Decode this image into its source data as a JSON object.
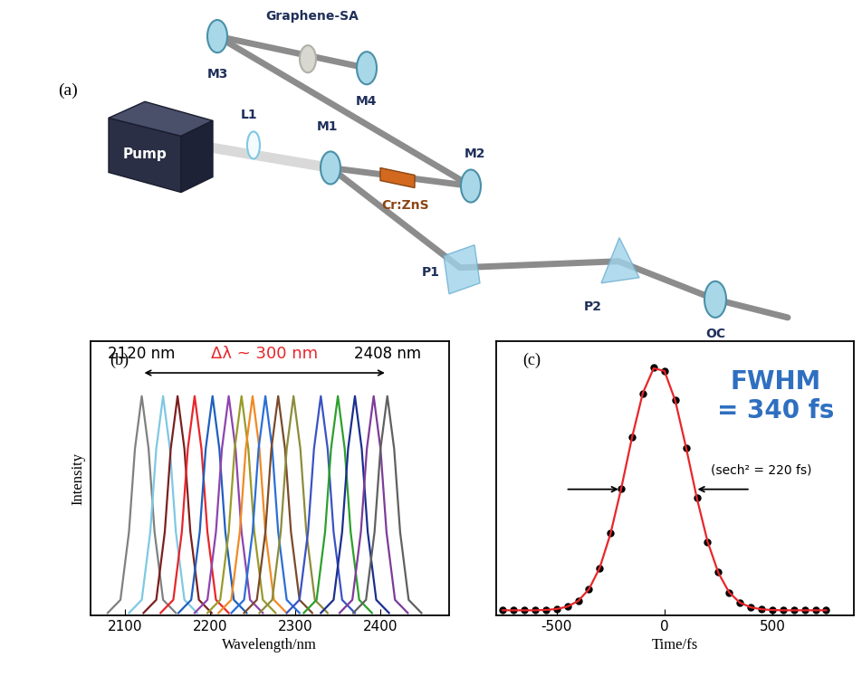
{
  "diagram": {
    "panel_label": "(a)",
    "components": {
      "pump": "Pump",
      "lens": "L1",
      "mirrors": [
        "M1",
        "M2",
        "M3",
        "M4"
      ],
      "gain_crystal": "Cr:ZnS",
      "saturable_absorber": "Graphene-SA",
      "prisms": [
        "P1",
        "P2"
      ],
      "output_coupler": "OC"
    }
  },
  "chart_data": [
    {
      "type": "line",
      "x_label": "Wavelength/nm",
      "y_label": "Intensity",
      "annotations": [
        "(b)",
        "2120 nm",
        "Δλ ~ 300 nm",
        "2408 nm"
      ],
      "xlim": [
        2060,
        2480
      ],
      "xticks": [
        2100,
        2200,
        2300,
        2400
      ],
      "ylim": [
        0,
        1.25
      ],
      "tick_labels": "x",
      "series": [
        {
          "color": "#808080",
          "x": [
            2080,
            2095,
            2105,
            2112,
            2120,
            2128,
            2135,
            2145,
            2160
          ],
          "values": [
            0.01,
            0.07,
            0.38,
            0.76,
            1.0,
            0.76,
            0.38,
            0.07,
            0.01
          ]
        },
        {
          "color": "#7ec8e3",
          "x": [
            2105,
            2120,
            2130,
            2137,
            2145,
            2153,
            2160,
            2170,
            2185
          ],
          "values": [
            0.01,
            0.07,
            0.38,
            0.76,
            1.0,
            0.76,
            0.38,
            0.07,
            0.01
          ]
        },
        {
          "color": "#7b1f1f",
          "x": [
            2122,
            2137,
            2147,
            2154,
            2162,
            2170,
            2177,
            2187,
            2202
          ],
          "values": [
            0.01,
            0.07,
            0.38,
            0.76,
            1.0,
            0.76,
            0.38,
            0.07,
            0.01
          ]
        },
        {
          "color": "#e8262a",
          "x": [
            2142,
            2157,
            2167,
            2174,
            2182,
            2190,
            2197,
            2207,
            2222
          ],
          "values": [
            0.01,
            0.07,
            0.38,
            0.76,
            1.0,
            0.76,
            0.38,
            0.07,
            0.01
          ]
        },
        {
          "color": "#1f5fbf",
          "x": [
            2163,
            2178,
            2188,
            2195,
            2203,
            2211,
            2218,
            2228,
            2243
          ],
          "values": [
            0.01,
            0.07,
            0.38,
            0.76,
            1.0,
            0.76,
            0.38,
            0.07,
            0.01
          ]
        },
        {
          "color": "#8e44ad",
          "x": [
            2182,
            2197,
            2207,
            2214,
            2222,
            2230,
            2237,
            2247,
            2262
          ],
          "values": [
            0.01,
            0.07,
            0.38,
            0.76,
            1.0,
            0.76,
            0.38,
            0.07,
            0.01
          ]
        },
        {
          "color": "#9a9a2a",
          "x": [
            2197,
            2212,
            2222,
            2229,
            2237,
            2245,
            2252,
            2262,
            2277
          ],
          "values": [
            0.01,
            0.07,
            0.38,
            0.76,
            1.0,
            0.76,
            0.38,
            0.07,
            0.01
          ]
        },
        {
          "color": "#f08a24",
          "x": [
            2210,
            2225,
            2235,
            2242,
            2250,
            2258,
            2265,
            2275,
            2290
          ],
          "values": [
            0.01,
            0.07,
            0.38,
            0.76,
            1.0,
            0.76,
            0.38,
            0.07,
            0.01
          ]
        },
        {
          "color": "#2a6fd6",
          "x": [
            2225,
            2240,
            2250,
            2257,
            2265,
            2273,
            2280,
            2290,
            2305
          ],
          "values": [
            0.01,
            0.07,
            0.38,
            0.76,
            1.0,
            0.76,
            0.38,
            0.07,
            0.01
          ]
        },
        {
          "color": "#7a4a2a",
          "x": [
            2240,
            2255,
            2265,
            2272,
            2280,
            2288,
            2295,
            2305,
            2320
          ],
          "values": [
            0.01,
            0.07,
            0.38,
            0.76,
            1.0,
            0.76,
            0.38,
            0.07,
            0.01
          ]
        },
        {
          "color": "#8c8c3a",
          "x": [
            2258,
            2273,
            2283,
            2290,
            2298,
            2306,
            2313,
            2323,
            2338
          ],
          "values": [
            0.01,
            0.07,
            0.38,
            0.76,
            1.0,
            0.76,
            0.38,
            0.07,
            0.01
          ]
        },
        {
          "color": "#3a52c4",
          "x": [
            2290,
            2305,
            2315,
            2322,
            2330,
            2338,
            2345,
            2355,
            2370
          ],
          "values": [
            0.01,
            0.07,
            0.38,
            0.76,
            1.0,
            0.76,
            0.38,
            0.07,
            0.01
          ]
        },
        {
          "color": "#2ca02c",
          "x": [
            2310,
            2325,
            2335,
            2342,
            2350,
            2358,
            2365,
            2375,
            2390
          ],
          "values": [
            0.01,
            0.07,
            0.38,
            0.76,
            1.0,
            0.76,
            0.38,
            0.07,
            0.01
          ]
        },
        {
          "color": "#1a2f8f",
          "x": [
            2330,
            2345,
            2355,
            2362,
            2370,
            2378,
            2385,
            2395,
            2410
          ],
          "values": [
            0.01,
            0.07,
            0.38,
            0.76,
            1.0,
            0.76,
            0.38,
            0.07,
            0.01
          ]
        },
        {
          "color": "#7d3c98",
          "x": [
            2352,
            2367,
            2377,
            2384,
            2392,
            2400,
            2407,
            2417,
            2432
          ],
          "values": [
            0.01,
            0.07,
            0.38,
            0.76,
            1.0,
            0.76,
            0.38,
            0.07,
            0.01
          ]
        },
        {
          "color": "#606060",
          "x": [
            2368,
            2383,
            2393,
            2400,
            2408,
            2416,
            2423,
            2433,
            2448
          ],
          "values": [
            0.01,
            0.07,
            0.38,
            0.76,
            1.0,
            0.76,
            0.38,
            0.07,
            0.01
          ]
        }
      ]
    },
    {
      "type": "line",
      "x_label": "Time/fs",
      "annotations": [
        "(c)",
        "FWHM\n= 340 fs",
        "(sech² = 220 fs)"
      ],
      "xlim": [
        -780,
        880
      ],
      "xticks": [
        -500,
        0,
        500
      ],
      "ylim": [
        -0.02,
        1.1
      ],
      "tick_labels": "x",
      "series": [
        {
          "color": "#000000",
          "marker": "o",
          "line_style": "none",
          "x": [
            -750,
            -700,
            -650,
            -600,
            -550,
            -500,
            -450,
            -400,
            -350,
            -300,
            -250,
            -200,
            -150,
            -100,
            -50,
            0,
            50,
            100,
            150,
            200,
            250,
            300,
            350,
            400,
            450,
            500,
            550,
            600,
            650,
            700,
            750
          ],
          "values": [
            0.0,
            0.0,
            0.0,
            0.0,
            0.002,
            0.005,
            0.016,
            0.037,
            0.088,
            0.172,
            0.315,
            0.498,
            0.71,
            0.887,
            0.992,
            0.978,
            0.86,
            0.665,
            0.462,
            0.279,
            0.155,
            0.072,
            0.032,
            0.012,
            0.004,
            0.001,
            0.0,
            0.0,
            0.0,
            0.0,
            0.0
          ]
        },
        {
          "color": "#e8262a",
          "line_style": "solid",
          "x": [
            -750,
            -700,
            -650,
            -600,
            -550,
            -500,
            -450,
            -400,
            -350,
            -300,
            -250,
            -200,
            -150,
            -100,
            -50,
            0,
            50,
            100,
            150,
            200,
            250,
            300,
            350,
            400,
            450,
            500,
            550,
            600,
            650,
            700,
            750
          ],
          "values": [
            0.0,
            0.0,
            0.0,
            0.0,
            0.0015,
            0.005,
            0.015,
            0.038,
            0.086,
            0.174,
            0.313,
            0.5,
            0.708,
            0.889,
            0.99,
            0.979,
            0.858,
            0.667,
            0.46,
            0.281,
            0.153,
            0.073,
            0.031,
            0.012,
            0.004,
            0.001,
            0.0,
            0.0,
            0.0,
            0.0,
            0.0
          ]
        }
      ]
    }
  ]
}
